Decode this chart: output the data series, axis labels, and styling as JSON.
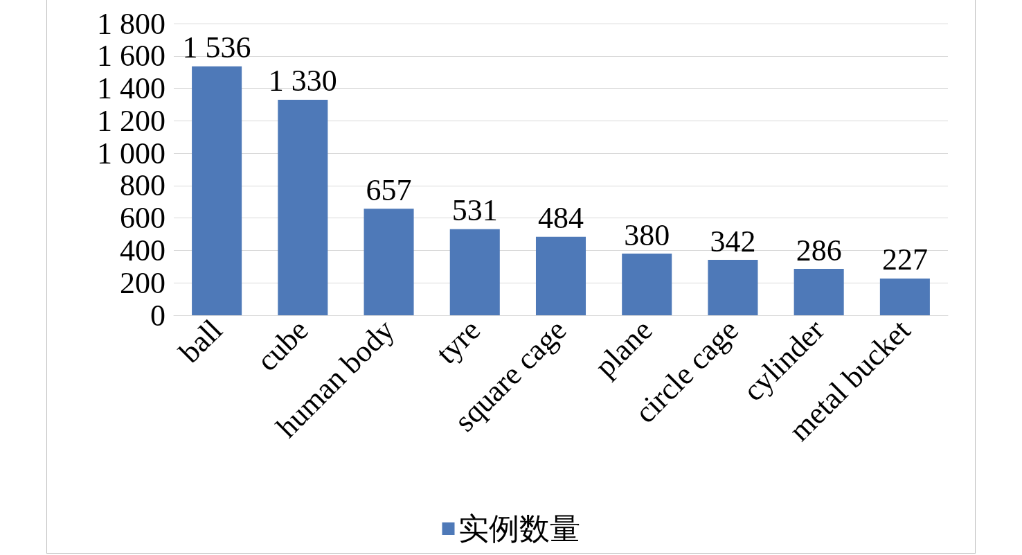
{
  "chart_data": {
    "type": "bar",
    "categories": [
      "ball",
      "cube",
      "human body",
      "tyre",
      "square cage",
      "plane",
      "circle cage",
      "cylinder",
      "metal bucket"
    ],
    "series": [
      {
        "name": "实例数量",
        "color": "#4e79b8",
        "values": [
          1536,
          1330,
          657,
          531,
          484,
          380,
          342,
          286,
          227
        ],
        "value_labels": [
          "1 536",
          "1 330",
          "657",
          "531",
          "484",
          "380",
          "342",
          "286",
          "227"
        ]
      }
    ],
    "ylim": [
      0,
      1800
    ],
    "yticks": [
      0,
      200,
      400,
      600,
      800,
      {
        "value": 1000,
        "label": "1 000"
      },
      {
        "value": 1200,
        "label": "1 200"
      },
      {
        "value": 1400,
        "label": "1 400"
      },
      {
        "value": 1600,
        "label": "1 600"
      },
      {
        "value": 1800,
        "label": "1 800"
      }
    ],
    "grid": "y",
    "legend": "bottom"
  }
}
